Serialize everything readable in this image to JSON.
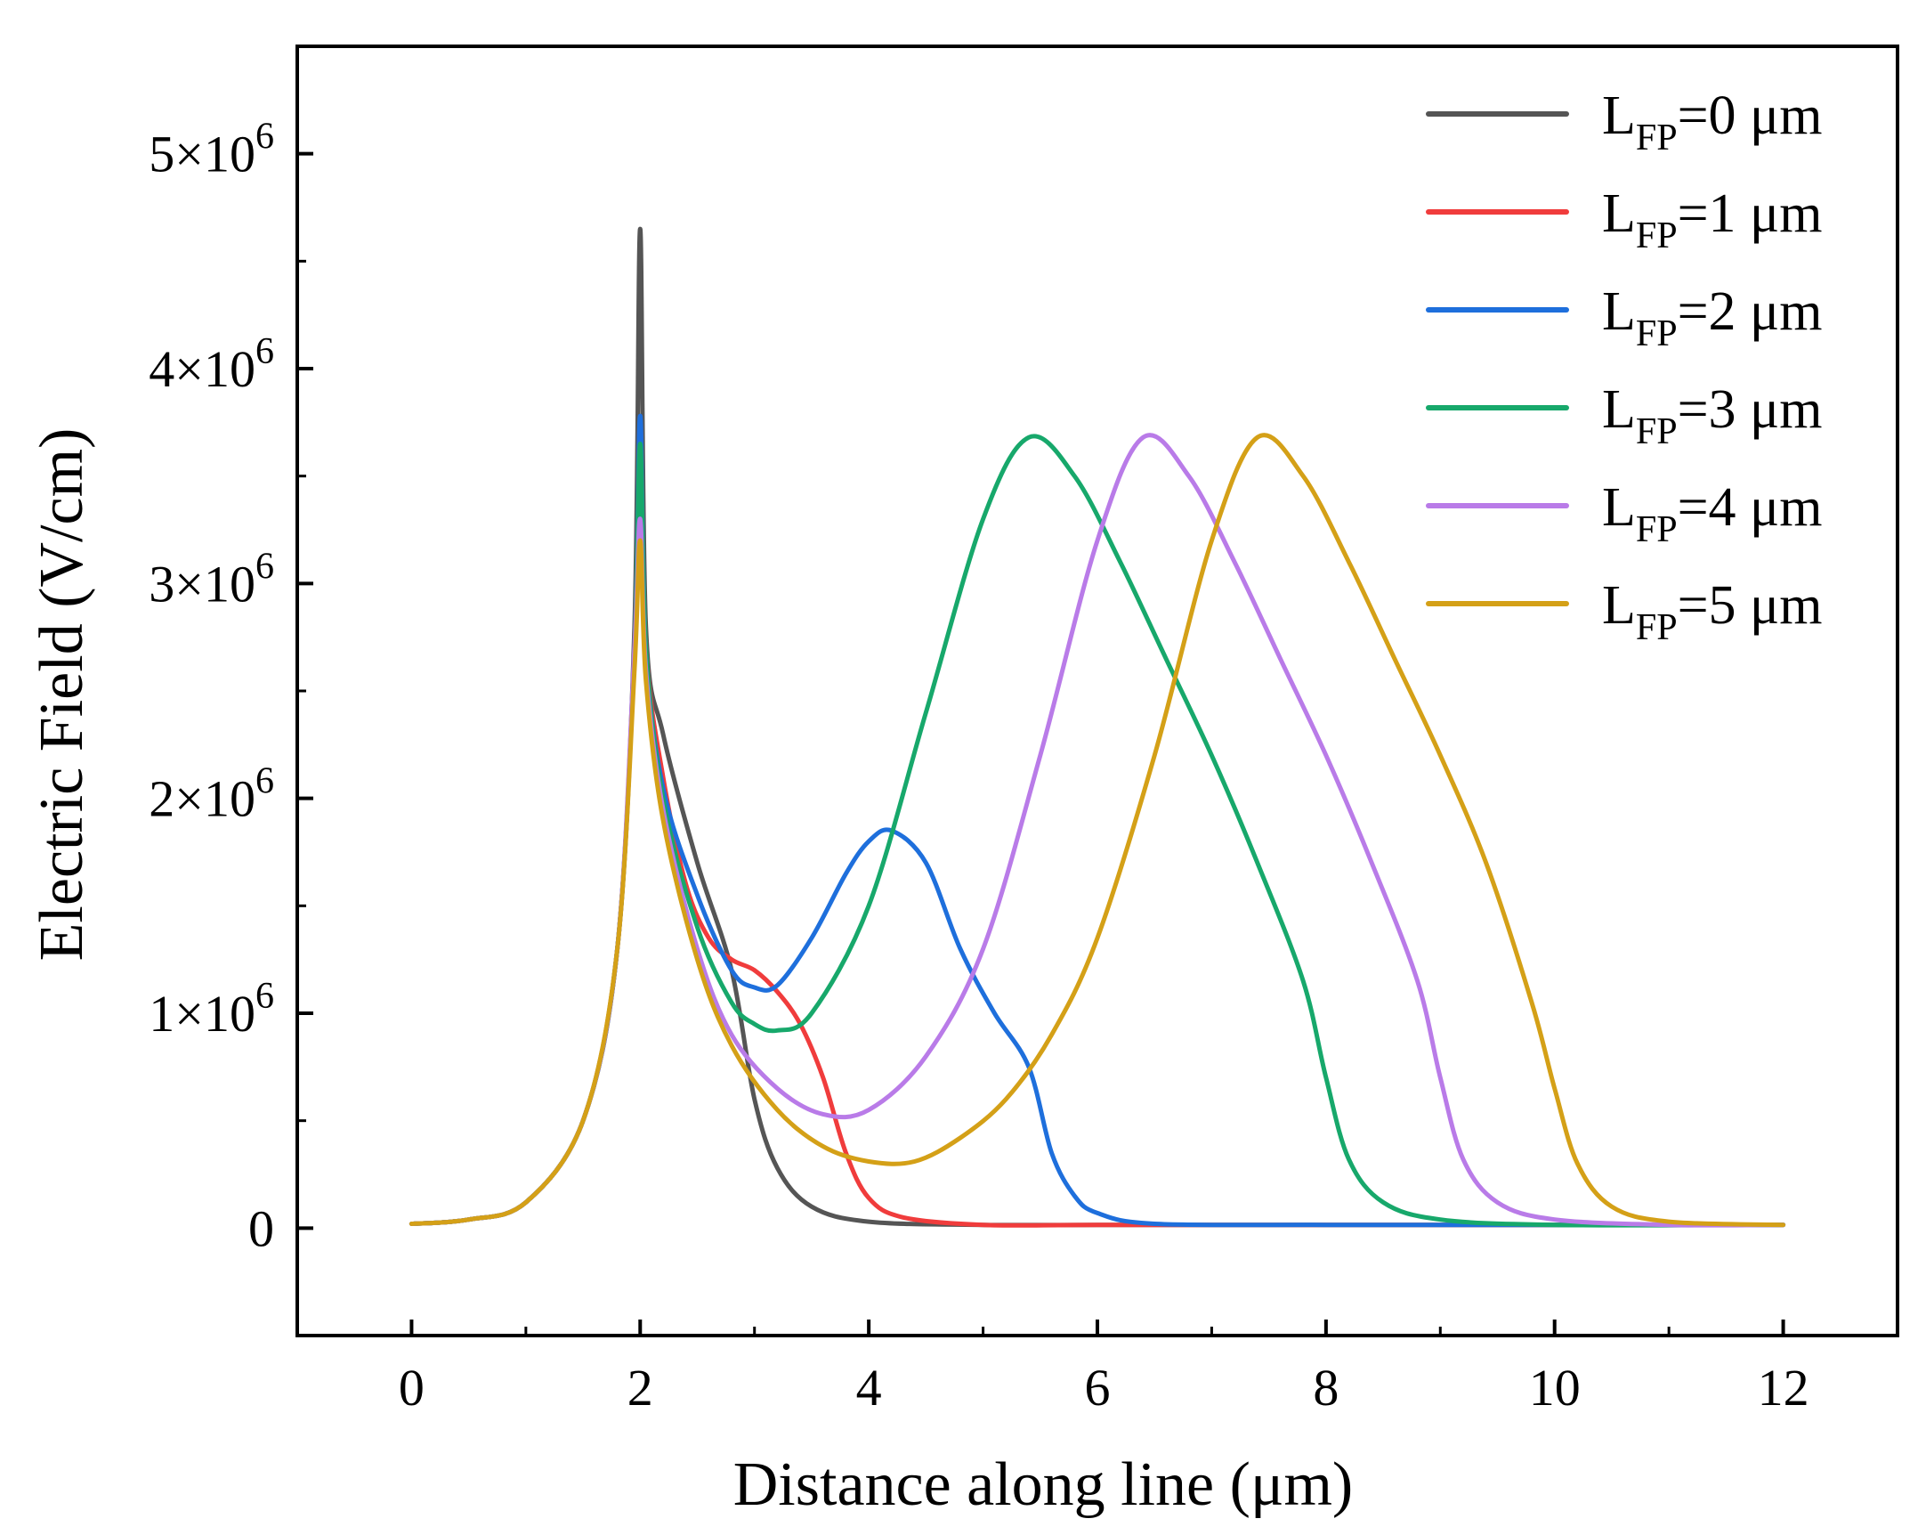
{
  "chart_data": {
    "type": "line",
    "title": "",
    "xlabel": "Distance along line (μm)",
    "ylabel": "Electric Field (V/cm)",
    "xlim": [
      -1,
      13
    ],
    "ylim": [
      -500000,
      5500000
    ],
    "legend_position": "top-right",
    "x_ticks": [
      {
        "value": 0,
        "label": "0"
      },
      {
        "value": 2,
        "label": "2"
      },
      {
        "value": 4,
        "label": "4"
      },
      {
        "value": 6,
        "label": "6"
      },
      {
        "value": 8,
        "label": "8"
      },
      {
        "value": 10,
        "label": "10"
      },
      {
        "value": 12,
        "label": "12"
      }
    ],
    "y_ticks": [
      {
        "value": 0,
        "label": "0"
      },
      {
        "value": 1000000,
        "label": "1×10",
        "exp": "6"
      },
      {
        "value": 2000000,
        "label": "2×10",
        "exp": "6"
      },
      {
        "value": 3000000,
        "label": "3×10",
        "exp": "6"
      },
      {
        "value": 4000000,
        "label": "4×10",
        "exp": "6"
      },
      {
        "value": 5000000,
        "label": "5×10",
        "exp": "6"
      }
    ],
    "series": [
      {
        "name": "L_FP=0 μm",
        "label_main": "L",
        "label_sub": "FP",
        "label_rest": "=0 μm",
        "color": "#555555",
        "points": [
          [
            0,
            20000
          ],
          [
            0.5,
            40000
          ],
          [
            1,
            120000
          ],
          [
            1.5,
            500000
          ],
          [
            1.8,
            1300000
          ],
          [
            1.95,
            2800000
          ],
          [
            2,
            4650000
          ],
          [
            2.05,
            2800000
          ],
          [
            2.2,
            2300000
          ],
          [
            2.5,
            1700000
          ],
          [
            2.8,
            1200000
          ],
          [
            3,
            600000
          ],
          [
            3.2,
            280000
          ],
          [
            3.5,
            100000
          ],
          [
            4,
            30000
          ],
          [
            5,
            15000
          ],
          [
            6,
            15000
          ],
          [
            8,
            15000
          ],
          [
            10,
            15000
          ],
          [
            12,
            15000
          ]
        ]
      },
      {
        "name": "L_FP=1 μm",
        "label_main": "L",
        "label_sub": "FP",
        "label_rest": "=1 μm",
        "color": "#f03c3c",
        "points": [
          [
            0,
            20000
          ],
          [
            0.5,
            40000
          ],
          [
            1,
            120000
          ],
          [
            1.5,
            500000
          ],
          [
            1.8,
            1300000
          ],
          [
            1.95,
            2700000
          ],
          [
            2,
            3750000
          ],
          [
            2.05,
            2700000
          ],
          [
            2.2,
            2100000
          ],
          [
            2.4,
            1600000
          ],
          [
            2.6,
            1350000
          ],
          [
            2.8,
            1250000
          ],
          [
            3,
            1200000
          ],
          [
            3.2,
            1100000
          ],
          [
            3.4,
            950000
          ],
          [
            3.6,
            700000
          ],
          [
            3.8,
            350000
          ],
          [
            4,
            140000
          ],
          [
            4.3,
            50000
          ],
          [
            5,
            15000
          ],
          [
            6,
            15000
          ],
          [
            8,
            15000
          ],
          [
            10,
            15000
          ],
          [
            12,
            15000
          ]
        ]
      },
      {
        "name": "L_FP=2 μm",
        "label_main": "L",
        "label_sub": "FP",
        "label_rest": "=2 μm",
        "color": "#1e6fdc",
        "points": [
          [
            0,
            20000
          ],
          [
            0.5,
            40000
          ],
          [
            1,
            120000
          ],
          [
            1.5,
            500000
          ],
          [
            1.8,
            1300000
          ],
          [
            1.95,
            2700000
          ],
          [
            2,
            3780000
          ],
          [
            2.05,
            2700000
          ],
          [
            2.2,
            2050000
          ],
          [
            2.5,
            1550000
          ],
          [
            2.8,
            1200000
          ],
          [
            3,
            1120000
          ],
          [
            3.2,
            1130000
          ],
          [
            3.5,
            1350000
          ],
          [
            3.8,
            1650000
          ],
          [
            4,
            1800000
          ],
          [
            4.2,
            1850000
          ],
          [
            4.5,
            1700000
          ],
          [
            4.8,
            1300000
          ],
          [
            5.1,
            1000000
          ],
          [
            5.4,
            750000
          ],
          [
            5.6,
            350000
          ],
          [
            5.8,
            150000
          ],
          [
            6,
            70000
          ],
          [
            6.5,
            20000
          ],
          [
            8,
            15000
          ],
          [
            10,
            15000
          ],
          [
            12,
            15000
          ]
        ]
      },
      {
        "name": "L_FP=3 μm",
        "label_main": "L",
        "label_sub": "FP",
        "label_rest": "=3 μm",
        "color": "#17a86b",
        "points": [
          [
            0,
            20000
          ],
          [
            0.5,
            40000
          ],
          [
            1,
            120000
          ],
          [
            1.5,
            500000
          ],
          [
            1.8,
            1300000
          ],
          [
            1.95,
            2700000
          ],
          [
            2,
            3650000
          ],
          [
            2.05,
            2700000
          ],
          [
            2.2,
            2000000
          ],
          [
            2.5,
            1400000
          ],
          [
            2.8,
            1050000
          ],
          [
            3,
            950000
          ],
          [
            3.2,
            920000
          ],
          [
            3.5,
            1000000
          ],
          [
            4,
            1500000
          ],
          [
            4.5,
            2400000
          ],
          [
            5,
            3300000
          ],
          [
            5.4,
            3680000
          ],
          [
            5.8,
            3500000
          ],
          [
            6.2,
            3100000
          ],
          [
            6.6,
            2650000
          ],
          [
            7,
            2200000
          ],
          [
            7.4,
            1700000
          ],
          [
            7.8,
            1150000
          ],
          [
            8,
            700000
          ],
          [
            8.2,
            320000
          ],
          [
            8.5,
            120000
          ],
          [
            9,
            40000
          ],
          [
            10,
            15000
          ],
          [
            12,
            15000
          ]
        ]
      },
      {
        "name": "L_FP=4 μm",
        "label_main": "L",
        "label_sub": "FP",
        "label_rest": "=4 μm",
        "color": "#b97be8",
        "points": [
          [
            0,
            20000
          ],
          [
            0.5,
            40000
          ],
          [
            1,
            120000
          ],
          [
            1.5,
            500000
          ],
          [
            1.8,
            1300000
          ],
          [
            1.95,
            2700000
          ],
          [
            2,
            3300000
          ],
          [
            2.05,
            2600000
          ],
          [
            2.2,
            1950000
          ],
          [
            2.5,
            1300000
          ],
          [
            2.8,
            900000
          ],
          [
            3.2,
            650000
          ],
          [
            3.6,
            530000
          ],
          [
            4,
            550000
          ],
          [
            4.5,
            800000
          ],
          [
            5,
            1300000
          ],
          [
            5.5,
            2200000
          ],
          [
            6,
            3200000
          ],
          [
            6.4,
            3680000
          ],
          [
            6.8,
            3500000
          ],
          [
            7.2,
            3100000
          ],
          [
            7.6,
            2650000
          ],
          [
            8,
            2200000
          ],
          [
            8.4,
            1700000
          ],
          [
            8.8,
            1150000
          ],
          [
            9,
            700000
          ],
          [
            9.2,
            320000
          ],
          [
            9.5,
            120000
          ],
          [
            10,
            40000
          ],
          [
            11,
            15000
          ],
          [
            12,
            15000
          ]
        ]
      },
      {
        "name": "L_FP=5 μm",
        "label_main": "L",
        "label_sub": "FP",
        "label_rest": "=5 μm",
        "color": "#d4a017",
        "points": [
          [
            0,
            20000
          ],
          [
            0.5,
            40000
          ],
          [
            1,
            120000
          ],
          [
            1.5,
            500000
          ],
          [
            1.8,
            1300000
          ],
          [
            1.95,
            2600000
          ],
          [
            2,
            3200000
          ],
          [
            2.05,
            2550000
          ],
          [
            2.2,
            1900000
          ],
          [
            2.5,
            1250000
          ],
          [
            2.8,
            850000
          ],
          [
            3.2,
            550000
          ],
          [
            3.6,
            380000
          ],
          [
            4,
            310000
          ],
          [
            4.4,
            310000
          ],
          [
            4.8,
            420000
          ],
          [
            5.2,
            600000
          ],
          [
            5.6,
            900000
          ],
          [
            6,
            1350000
          ],
          [
            6.5,
            2200000
          ],
          [
            7,
            3200000
          ],
          [
            7.4,
            3680000
          ],
          [
            7.8,
            3500000
          ],
          [
            8.2,
            3100000
          ],
          [
            8.6,
            2650000
          ],
          [
            9,
            2200000
          ],
          [
            9.4,
            1700000
          ],
          [
            9.8,
            1050000
          ],
          [
            10,
            650000
          ],
          [
            10.2,
            300000
          ],
          [
            10.5,
            100000
          ],
          [
            11,
            30000
          ],
          [
            12,
            15000
          ]
        ]
      }
    ]
  }
}
